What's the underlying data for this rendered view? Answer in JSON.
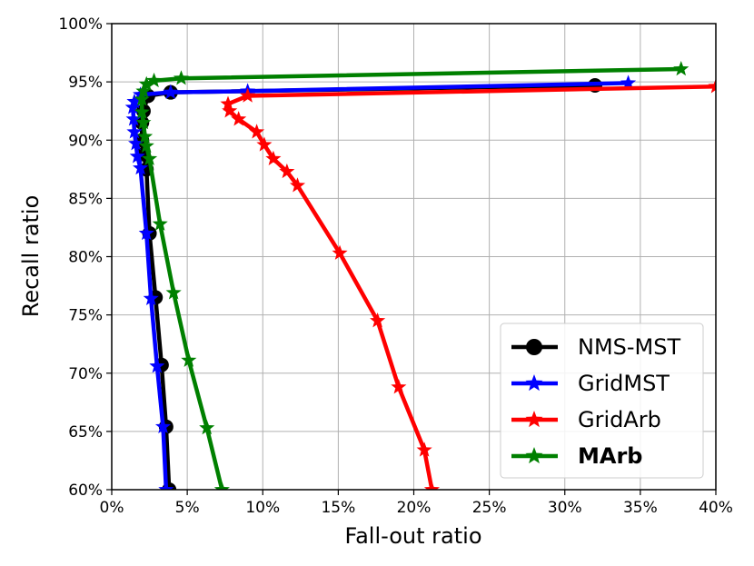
{
  "chart_data": {
    "type": "line",
    "xlabel": "Fall-out ratio",
    "ylabel": "Recall ratio",
    "xlim": [
      0,
      40
    ],
    "ylim": [
      60,
      100
    ],
    "x_ticks": [
      "0%",
      "5%",
      "10%",
      "15%",
      "20%",
      "25%",
      "30%",
      "35%",
      "40%"
    ],
    "y_ticks": [
      "60%",
      "65%",
      "70%",
      "75%",
      "80%",
      "85%",
      "90%",
      "95%",
      "100%"
    ],
    "grid": true,
    "legend_position": "bottom-right",
    "series": [
      {
        "name": "NMS-MST",
        "color": "#000000",
        "marker": "circle",
        "bold": false,
        "points": [
          [
            32.0,
            94.7
          ],
          [
            3.9,
            94.1
          ],
          [
            2.4,
            93.8
          ],
          [
            2.1,
            92.5
          ],
          [
            2.0,
            91.5
          ],
          [
            2.0,
            90.0
          ],
          [
            2.1,
            88.8
          ],
          [
            2.3,
            87.5
          ],
          [
            2.5,
            82.0
          ],
          [
            2.9,
            76.5
          ],
          [
            3.3,
            70.7
          ],
          [
            3.6,
            65.4
          ],
          [
            3.8,
            60.0
          ]
        ]
      },
      {
        "name": "GridMST",
        "color": "#0000ff",
        "marker": "star",
        "bold": false,
        "points": [
          [
            34.2,
            94.9
          ],
          [
            9.0,
            94.2
          ],
          [
            3.9,
            94.1
          ],
          [
            1.9,
            93.9
          ],
          [
            1.5,
            93.3
          ],
          [
            1.4,
            92.8
          ],
          [
            1.45,
            91.8
          ],
          [
            1.5,
            90.7
          ],
          [
            1.6,
            89.7
          ],
          [
            1.7,
            88.6
          ],
          [
            1.9,
            87.6
          ],
          [
            2.3,
            82.0
          ],
          [
            2.6,
            76.4
          ],
          [
            3.0,
            70.6
          ],
          [
            3.4,
            65.4
          ],
          [
            3.6,
            60.0
          ]
        ]
      },
      {
        "name": "GridArb",
        "color": "#ff0000",
        "marker": "star",
        "bold": false,
        "points": [
          [
            40.0,
            94.6
          ],
          [
            9.0,
            93.8
          ],
          [
            7.7,
            93.1
          ],
          [
            7.8,
            92.5
          ],
          [
            8.4,
            91.8
          ],
          [
            9.6,
            90.7
          ],
          [
            10.1,
            89.6
          ],
          [
            10.7,
            88.4
          ],
          [
            11.6,
            87.3
          ],
          [
            12.3,
            86.1
          ],
          [
            15.1,
            80.3
          ],
          [
            17.6,
            74.5
          ],
          [
            19.0,
            68.8
          ],
          [
            20.7,
            63.4
          ],
          [
            21.2,
            60.0
          ]
        ]
      },
      {
        "name": "MArb",
        "color": "#008000",
        "marker": "star",
        "bold": true,
        "points": [
          [
            37.7,
            96.1
          ],
          [
            4.6,
            95.3
          ],
          [
            2.8,
            95.1
          ],
          [
            2.3,
            94.8
          ],
          [
            2.1,
            94.2
          ],
          [
            2.0,
            93.5
          ],
          [
            2.0,
            92.4
          ],
          [
            2.1,
            91.5
          ],
          [
            2.2,
            90.3
          ],
          [
            2.3,
            89.5
          ],
          [
            2.5,
            88.4
          ],
          [
            3.2,
            82.8
          ],
          [
            4.1,
            76.9
          ],
          [
            5.1,
            71.1
          ],
          [
            6.3,
            65.3
          ],
          [
            7.3,
            60.0
          ]
        ]
      }
    ]
  }
}
